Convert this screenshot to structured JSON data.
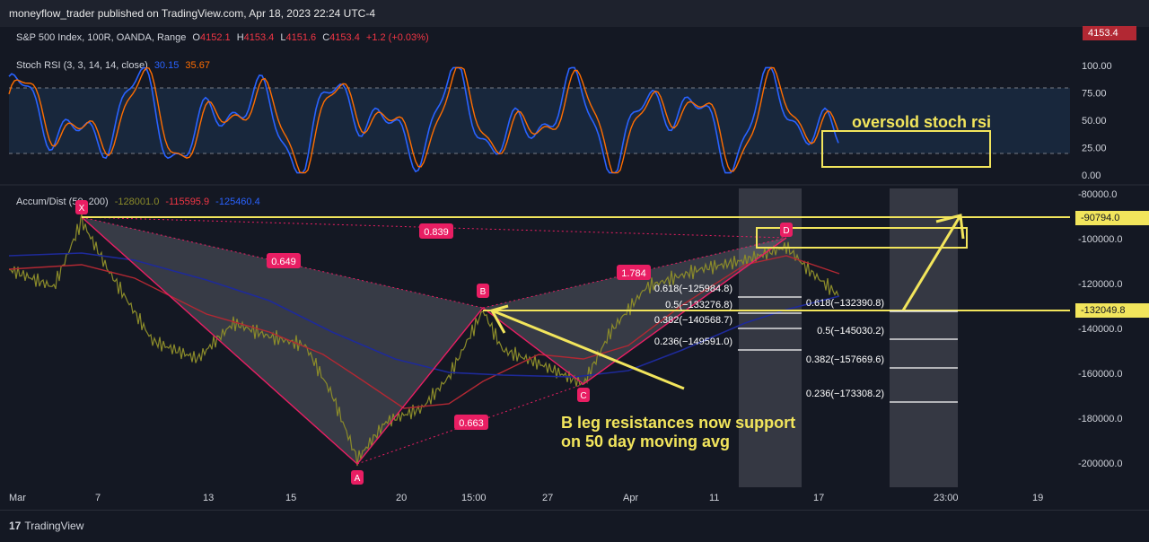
{
  "header": {
    "publisher_line": "moneyflow_trader published on TradingView.com, Apr 18, 2023 22:24 UTC-4"
  },
  "main_legend": {
    "symbol": "S&P 500 Index, 100R, OANDA, Range",
    "o_label": "O",
    "o_value": "4152.1",
    "h_label": "H",
    "h_value": "4153.4",
    "l_label": "L",
    "l_value": "4151.6",
    "c_label": "C",
    "c_value": "4153.4",
    "change": "+1.2 (+0.03%)",
    "price_tag": "4153.4"
  },
  "rsi_legend": {
    "name": "Stoch RSI (3, 3, 14, 14, close)",
    "k_value": "30.15",
    "d_value": "35.67"
  },
  "ad_legend": {
    "name": "Accum/Dist (50, 200)",
    "v1": "-128001.0",
    "v2": "-115595.9",
    "v3": "-125460.4"
  },
  "price_tags": {
    "upper": "-90794.0",
    "lower": "-132049.8"
  },
  "annotations": {
    "oversold": "oversold stoch rsi",
    "b_leg_line1": "B leg resistances now support",
    "b_leg_line2": "on 50 day moving avg"
  },
  "footer": {
    "brand": "TradingView",
    "logo_mark": "17"
  },
  "chart_data": [
    {
      "type": "line",
      "title": "Stoch RSI (3, 3, 14, 14, close)",
      "y_ticks": [
        "100.00",
        "75.00",
        "50.00",
        "25.00",
        "0.00"
      ],
      "ylim": [
        0,
        100
      ],
      "bands": [
        80,
        20
      ],
      "series": [
        {
          "name": "K",
          "color": "#2962ff",
          "last": 30.15
        },
        {
          "name": "D",
          "color": "#ff6d00",
          "last": 35.67
        }
      ]
    },
    {
      "type": "line",
      "title": "Accum/Dist (50, 200)",
      "ylim": [
        -205000,
        -80000
      ],
      "y_ticks": [
        "-80000.0",
        "-100000.0",
        "-120000.0",
        "-140000.0",
        "-160000.0",
        "-180000.0",
        "-200000.0"
      ],
      "x_ticks": [
        "Mar",
        "7",
        "13",
        "15",
        "20",
        "15:00",
        "27",
        "Apr",
        "11",
        "17",
        "23:00",
        "19"
      ],
      "series": [
        {
          "name": "A/D",
          "color": "#8b8b2a"
        },
        {
          "name": "MA 50",
          "color": "#b22833"
        },
        {
          "name": "MA 200",
          "color": "#1e2a9a"
        }
      ],
      "xabcd_points": {
        "X": -90794.0,
        "A": -200000.0,
        "B": -132049.8,
        "C": -164500.0,
        "D": -97500.0
      },
      "xabcd_labels": {
        "X": "X",
        "A": "A",
        "B": "B",
        "C": "C",
        "D": "D"
      },
      "ratios": {
        "XB": "0.649",
        "XD": "0.839",
        "AC": "0.663",
        "BD": "1.784"
      },
      "fib_set_1": [
        {
          "label": "0.618(−125984.8)",
          "value": -125984.8
        },
        {
          "label": "0.5(−133276.8)",
          "value": -133276.8
        },
        {
          "label": "0.382(−140568.7)",
          "value": -140568.7
        },
        {
          "label": "0.236(−149591.0)",
          "value": -149591.0
        }
      ],
      "fib_set_2": [
        {
          "label": "0.618(−132390.8)",
          "value": -132390.8
        },
        {
          "label": "0.5(−145030.2)",
          "value": -145030.2
        },
        {
          "label": "0.382(−157669.6)",
          "value": -157669.6
        },
        {
          "label": "0.236(−173308.2)",
          "value": -173308.2
        }
      ],
      "horizontal_levels": [
        -90794.0,
        -132049.8
      ]
    }
  ]
}
